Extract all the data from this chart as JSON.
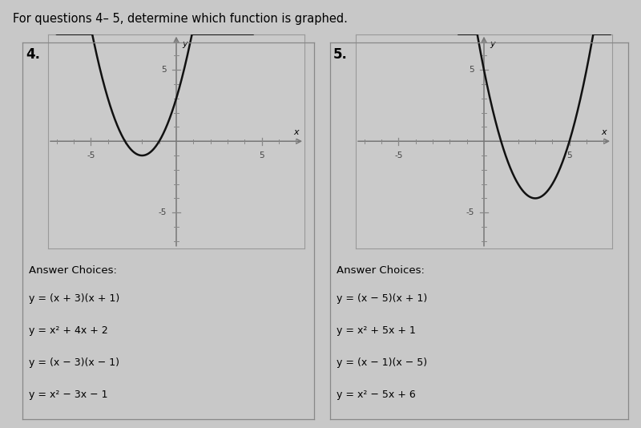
{
  "title": "For questions 4– 5, determine which function is graphed.",
  "title_fontsize": 10.5,
  "bg_color": "#c8c8c8",
  "plot_bg_color": "#cacaca",
  "graph4": {
    "label": "4.",
    "xlim": [
      -7.5,
      7.5
    ],
    "ylim": [
      -7.5,
      7.5
    ],
    "xtick_labels": [
      [
        -5,
        "-5"
      ],
      [
        5,
        "5"
      ]
    ],
    "ytick_labels": [
      [
        5,
        "5"
      ],
      [
        -5,
        "-5"
      ]
    ],
    "func": "x_vals**2 + 4*x_vals + 3",
    "xrange": [
      -7.0,
      4.5
    ]
  },
  "graph5": {
    "label": "5.",
    "xlim": [
      -7.5,
      7.5
    ],
    "ylim": [
      -7.5,
      7.5
    ],
    "xtick_labels": [
      [
        -5,
        "-5"
      ],
      [
        5,
        "5"
      ]
    ],
    "ytick_labels": [
      [
        5,
        "5"
      ],
      [
        -5,
        "-5"
      ]
    ],
    "func": "x_vals**2 - 6*x_vals + 5",
    "xrange": [
      -1.5,
      7.4
    ]
  },
  "choices4": [
    "y = (x + 3)(x + 1)",
    "y = x² + 4x + 2",
    "y = (x − 3)(x − 1)",
    "y = x² − 3x − 1"
  ],
  "choices5": [
    "y = (x − 5)(x + 1)",
    "y = x² + 5x + 1",
    "y = (x − 1)(x − 5)",
    "y = x² − 5x + 6"
  ],
  "answer_choices_fontsize": 9.5,
  "curve_color": "#111111",
  "axis_color": "#777777",
  "tick_color": "#888888",
  "spine_color": "#999999"
}
